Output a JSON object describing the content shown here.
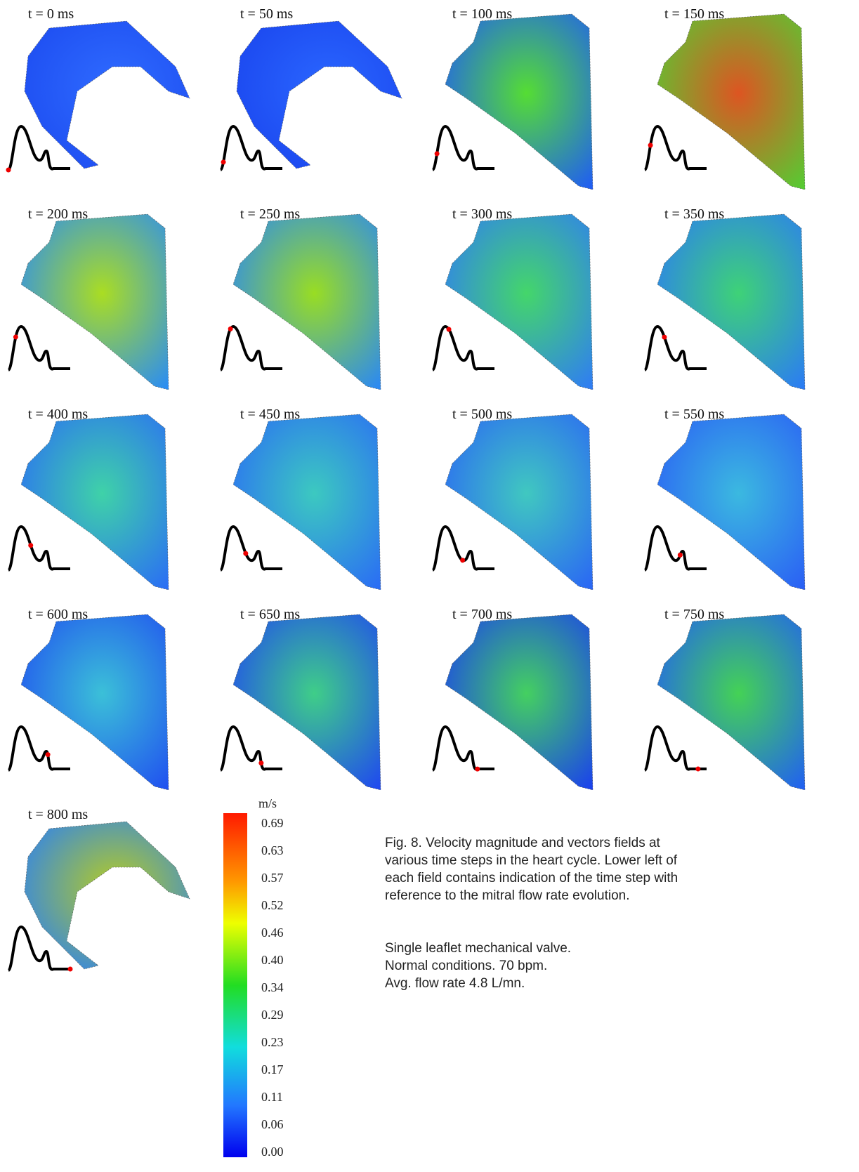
{
  "panels": {
    "labels": [
      "t = 0 ms",
      "t = 50 ms",
      "t = 100 ms",
      "t = 150 ms",
      "t = 200 ms",
      "t = 250 ms",
      "t = 300 ms",
      "t = 350 ms",
      "t = 400 ms",
      "t = 450 ms",
      "t = 500 ms",
      "t = 550 ms",
      "t = 600 ms",
      "t = 650 ms",
      "t = 700 ms",
      "t = 750 ms",
      "t = 800 ms"
    ]
  },
  "colorbar": {
    "unit": "m/s",
    "ticks": [
      "0.69",
      "0.63",
      "0.57",
      "0.52",
      "0.46",
      "0.40",
      "0.34",
      "0.29",
      "0.23",
      "0.17",
      "0.11",
      "0.06",
      "0.00"
    ]
  },
  "caption": {
    "lines": [
      "Fig. 8. Velocity magnitude and vectors fields at",
      "various time steps in the heart cycle. Lower left of",
      "each field contains indication of the time step with",
      "reference to the mitral flow rate evolution."
    ],
    "notes": [
      "Single leaflet mechanical valve.",
      "Normal conditions. 70 bpm.",
      "Avg. flow rate 4.8 L/mn."
    ]
  }
}
